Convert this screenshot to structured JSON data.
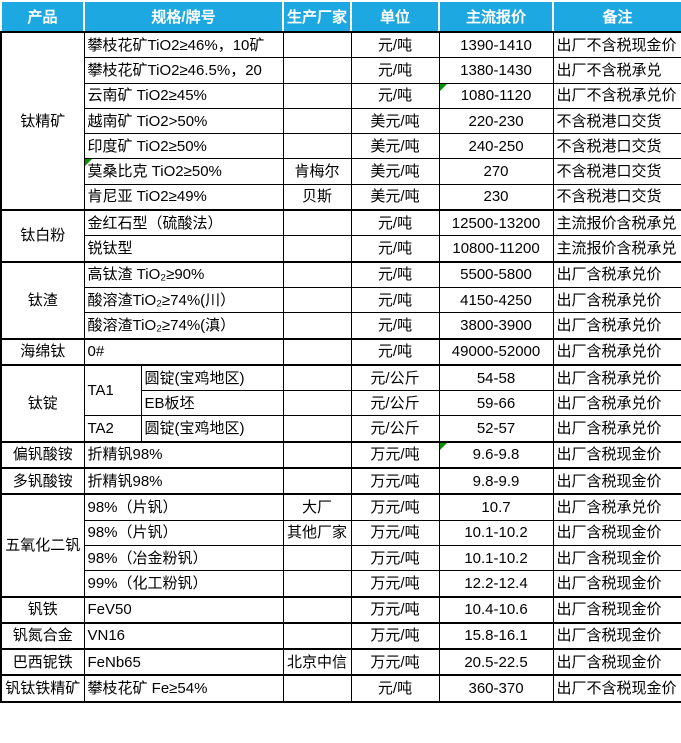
{
  "colors": {
    "header_bg": "#1EA8E2",
    "header_text": "#FFFFFF",
    "grid_border": "#000000",
    "flag_green": "#089000"
  },
  "header": {
    "product": "产品",
    "spec": "规格/牌号",
    "vendor": "生产厂家",
    "unit": "单位",
    "price": "主流报价",
    "note": "备注"
  },
  "rows": [
    {
      "product": "钛精矿",
      "product_span": 7,
      "spec": "攀枝花矿TiO2≥46%，10矿",
      "vendor": "",
      "unit": "元/吨",
      "price": "1390-1410",
      "note": "出厂不含税现金价"
    },
    {
      "spec": "攀枝花矿TiO2≥46.5%，20",
      "vendor": "",
      "unit": "元/吨",
      "price": "1380-1430",
      "note": "出厂不含税承兑"
    },
    {
      "spec": "云南矿 TiO2≥45%",
      "vendor": "",
      "unit": "元/吨",
      "price": "1080-1120",
      "note": "出厂不含税承兑价",
      "price_flag": true
    },
    {
      "spec": "越南矿 TiO2>50%",
      "vendor": "",
      "unit": "美元/吨",
      "price": "220-230",
      "note": "不含税港口交货"
    },
    {
      "spec": "印度矿 TiO2≥50%",
      "vendor": "",
      "unit": "美元/吨",
      "price": "240-250",
      "note": "不含税港口交货"
    },
    {
      "spec": "莫桑比克 TiO2≥50%",
      "vendor": "肯梅尔",
      "unit": "美元/吨",
      "price": "270",
      "note": "不含税港口交货",
      "spec_flag": true
    },
    {
      "spec": "肯尼亚 TiO2≥49%",
      "vendor": "贝斯",
      "unit": "美元/吨",
      "price": "230",
      "note": "不含税港口交货"
    },
    {
      "product": "钛白粉",
      "product_span": 2,
      "spec": "金红石型（硫酸法）",
      "vendor": "",
      "unit": "元/吨",
      "price": "12500-13200",
      "note": "主流报价含税承兑"
    },
    {
      "spec": "锐钛型",
      "vendor": "",
      "unit": "元/吨",
      "price": "10800-11200",
      "note": "主流报价含税承兑"
    },
    {
      "product": "钛渣",
      "product_span": 3,
      "spec": "高钛渣 TiO₂≥90%",
      "vendor": "",
      "unit": "元/吨",
      "price": "5500-5800",
      "note": "出厂含税承兑价"
    },
    {
      "spec": "酸溶渣TiO₂≥74%(川）",
      "vendor": "",
      "unit": "元/吨",
      "price": "4150-4250",
      "note": "出厂含税承兑价"
    },
    {
      "spec": "酸溶渣TiO₂≥74%(滇）",
      "vendor": "",
      "unit": "元/吨",
      "price": "3800-3900",
      "note": "出厂含税承兑价"
    },
    {
      "product": "海绵钛",
      "product_span": 1,
      "spec": "0#",
      "vendor": "",
      "unit": "元/吨",
      "price": "49000-52000",
      "note": "出厂含税承兑价"
    },
    {
      "product": "钛锭",
      "product_span": 3,
      "spec_a": "TA1",
      "spec_a_span": 2,
      "spec_b": "圆锭(宝鸡地区)",
      "vendor": "",
      "unit": "元/公斤",
      "price": "54-58",
      "note": "出厂含税承兑价"
    },
    {
      "spec_b": "EB板坯",
      "vendor": "",
      "unit": "元/公斤",
      "price": "59-66",
      "note": "出厂含税承兑价"
    },
    {
      "spec_a": "TA2",
      "spec_a_span": 1,
      "spec_b": "圆锭(宝鸡地区)",
      "vendor": "",
      "unit": "元/公斤",
      "price": "52-57",
      "note": "出厂含税承兑价"
    },
    {
      "product": "偏钒酸铵",
      "product_span": 1,
      "spec": "折精钒98%",
      "vendor": "",
      "unit": "万元/吨",
      "price": "9.6-9.8",
      "note": "出厂含税现金价",
      "price_flag": true
    },
    {
      "product": "多钒酸铵",
      "product_span": 1,
      "spec": "折精钒98%",
      "vendor": "",
      "unit": "万元/吨",
      "price": "9.8-9.9",
      "note": "出厂含税现金价"
    },
    {
      "product": "五氧化二钒",
      "product_span": 4,
      "spec": "98%（片钒）",
      "vendor": "大厂",
      "unit": "万元/吨",
      "price": "10.7",
      "note": "出厂含税承兑价"
    },
    {
      "spec": "98%（片钒）",
      "vendor": "其他厂家",
      "unit": "万元/吨",
      "price": "10.1-10.2",
      "note": "出厂含税现金价"
    },
    {
      "spec": "98%（冶金粉钒）",
      "vendor": "",
      "unit": "万元/吨",
      "price": "10.1-10.2",
      "note": "出厂含税现金价"
    },
    {
      "spec": "99%（化工粉钒）",
      "vendor": "",
      "unit": "万元/吨",
      "price": "12.2-12.4",
      "note": "出厂含税现金价"
    },
    {
      "product": "钒铁",
      "product_span": 1,
      "spec": "FeV50",
      "vendor": "",
      "unit": "万元/吨",
      "price": "10.4-10.6",
      "note": "出厂含税现金价"
    },
    {
      "product": "钒氮合金",
      "product_span": 1,
      "spec": "VN16",
      "vendor": "",
      "unit": "万元/吨",
      "price": "15.8-16.1",
      "note": "出厂含税现金价"
    },
    {
      "product": "巴西铌铁",
      "product_span": 1,
      "spec": "FeNb65",
      "vendor": "北京中信",
      "unit": "万元/吨",
      "price": "20.5-22.5",
      "note": "出厂含税现金价"
    },
    {
      "product": "钒钛铁精矿",
      "product_span": 1,
      "spec": "攀枝花矿 Fe≥54%",
      "vendor": "",
      "unit": "元/吨",
      "price": "360-370",
      "note": "出厂不含税现金价"
    }
  ]
}
